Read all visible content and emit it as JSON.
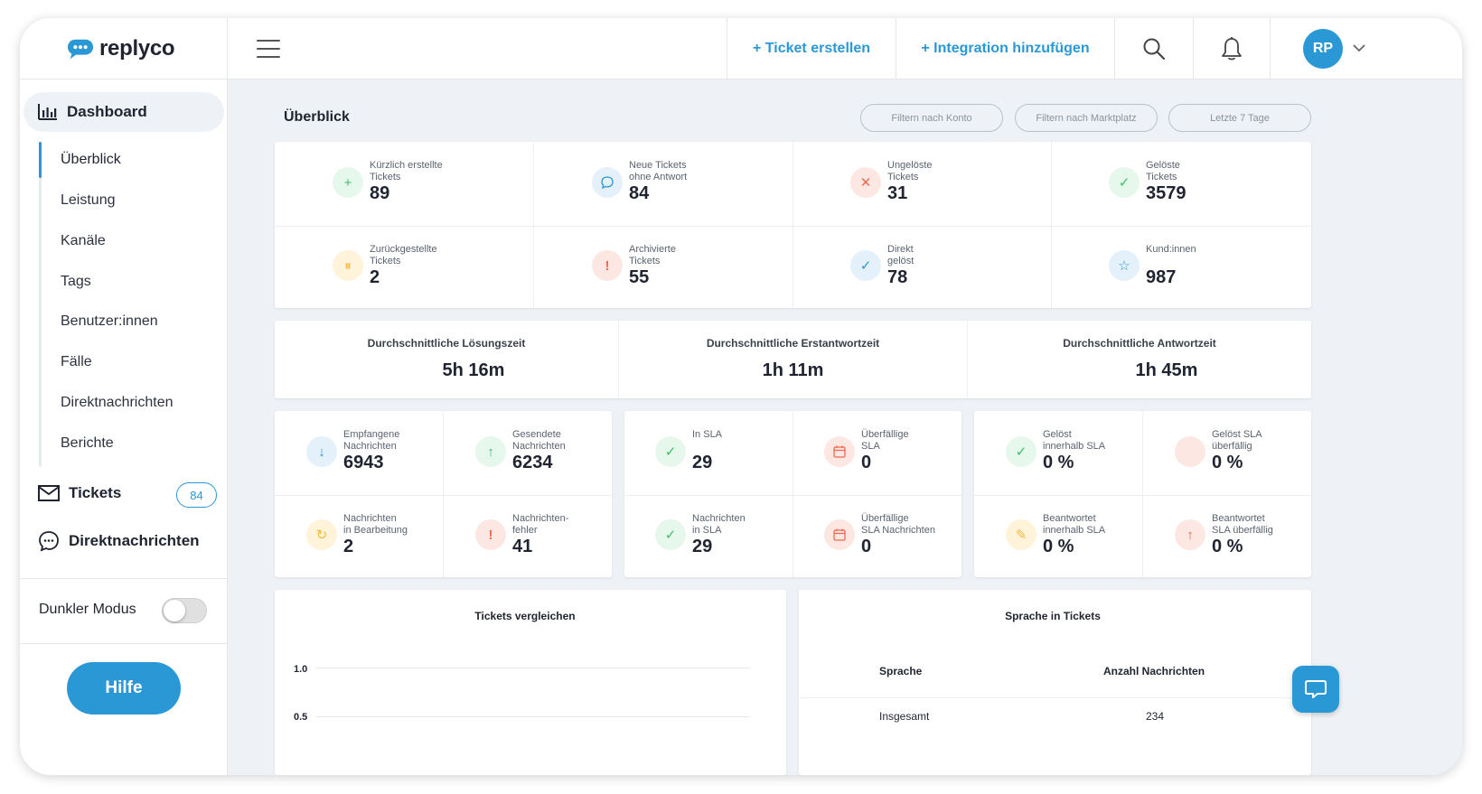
{
  "app": {
    "brand": "replyco"
  },
  "header": {
    "create_ticket": "+ Ticket erstellen",
    "add_integration": "+ Integration hinzufügen",
    "avatar_initials": "RP"
  },
  "sidebar": {
    "dashboard": "Dashboard",
    "sub_items": [
      "Überblick",
      "Leistung",
      "Kanäle",
      "Tags",
      "Benutzer:innen",
      "Fälle",
      "Direktnachrichten",
      "Berichte"
    ],
    "tickets": "Tickets",
    "tickets_badge": "84",
    "direct_messages": "Direktnachrichten",
    "dark_mode": "Dunkler Modus",
    "dark_mode_on": false,
    "help": "Hilfe"
  },
  "main": {
    "title": "Überblick",
    "filters": [
      "Filtern nach Konto",
      "Filtern nach Marktplatz",
      "Letzte 7 Tage"
    ]
  },
  "stats": [
    {
      "label1": "Kürzlich erstellte",
      "label2": "Tickets",
      "value": "89",
      "icon": "plus-icon"
    },
    {
      "label1": "Neue Tickets",
      "label2": "ohne Antwort",
      "value": "84",
      "icon": "speech-bubble-icon"
    },
    {
      "label1": "Ungelöste",
      "label2": "Tickets",
      "value": "31",
      "icon": "x-icon"
    },
    {
      "label1": "Gelöste",
      "label2": "Tickets",
      "value": "3579",
      "icon": "check-icon"
    },
    {
      "label1": "Zurückgestellte",
      "label2": "Tickets",
      "value": "2",
      "icon": "pause-icon"
    },
    {
      "label1": "Archivierte",
      "label2": "Tickets",
      "value": "55",
      "icon": "exclamation-icon"
    },
    {
      "label1": "Direkt",
      "label2": "gelöst",
      "value": "78",
      "icon": "check-icon"
    },
    {
      "label1": "Kund:innen",
      "label2": "",
      "value": "987",
      "icon": "star-icon"
    }
  ],
  "averages": [
    {
      "label": "Durchschnittliche Lösungszeit",
      "value": "5h 16m"
    },
    {
      "label": "Durchschnittliche Erstantwortzeit",
      "value": "1h 11m"
    },
    {
      "label": "Durchschnittliche  Antwortzeit",
      "value": "1h 45m"
    }
  ],
  "messages": [
    {
      "label1": "Empfangene",
      "label2": "Nachrichten",
      "value": "6943",
      "icon": "arrow-down-icon"
    },
    {
      "label1": "Gesendete",
      "label2": "Nachrichten",
      "value": "6234",
      "icon": "arrow-up-icon"
    },
    {
      "label1": "Nachrichten",
      "label2": "in Bearbeitung",
      "value": "2",
      "icon": "refresh-icon"
    },
    {
      "label1": "Nachrichten-",
      "label2": "fehler",
      "value": "41",
      "icon": "exclamation-icon"
    }
  ],
  "sla": [
    {
      "label1": "In SLA",
      "label2": "",
      "value": "29",
      "icon": "check-icon"
    },
    {
      "label1": "Überfällige",
      "label2": "SLA",
      "value": "0",
      "icon": "calendar-icon"
    },
    {
      "label1": "Nachrichten",
      "label2": "in SLA",
      "value": "29",
      "icon": "check-icon"
    },
    {
      "label1": "Überfällige",
      "label2": "SLA Nachrichten",
      "value": "0",
      "icon": "calendar-icon"
    }
  ],
  "sla_resolve": [
    {
      "label1": "Gelöst",
      "label2": "innerhalb SLA",
      "value": "0 %",
      "icon": "check-icon"
    },
    {
      "label1": "Gelöst SLA",
      "label2": "überfällig",
      "value": "0 %",
      "icon": "blank-icon"
    },
    {
      "label1": "Beantwortet",
      "label2": "innerhalb SLA",
      "value": "0 %",
      "icon": "pencil-icon"
    },
    {
      "label1": "Beantwortet",
      "label2": "SLA überfällig",
      "value": "0 %",
      "icon": "arrow-up-icon"
    }
  ],
  "compare_panel": {
    "title": "Tickets vergleichen",
    "y_ticks": [
      "1.0",
      "0.5"
    ]
  },
  "language_panel": {
    "title": "Sprache in Tickets",
    "columns": [
      "Sprache",
      "Anzahl Nachrichten"
    ],
    "rows": [
      {
        "language": "Insgesamt",
        "count": "234"
      }
    ]
  },
  "colors": {
    "accent": "#2b98d6",
    "green_bg": "#e6f7ec",
    "green": "#3cbf6c",
    "blue_bg": "#e4f1fa",
    "blue": "#2b98d6",
    "red_bg": "#fde7e3",
    "red": "#ef6a4f",
    "yellow_bg": "#fff3d9",
    "yellow": "#f4b942"
  }
}
